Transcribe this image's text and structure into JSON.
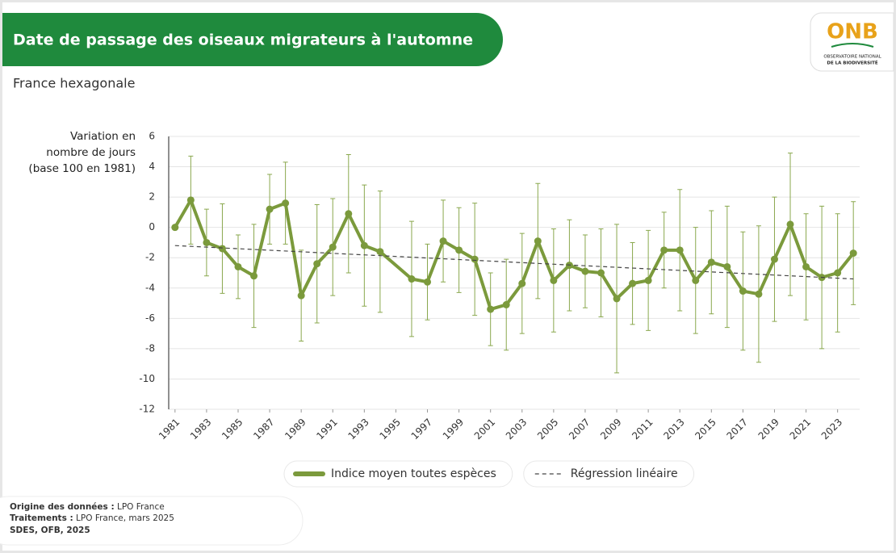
{
  "header": {
    "title": "Date de passage des oiseaux migrateurs à l'automne",
    "subtitle": "France hexagonale",
    "logo": {
      "name": "ONB",
      "line1": "OBSERVATOIRE NATIONAL",
      "line2": "DE LA BIODIVERSITÉ"
    }
  },
  "chart_data": {
    "type": "line",
    "ylabel": [
      "Variation en",
      "nombre de jours",
      "(base 100 en 1981)"
    ],
    "x": [
      1981,
      1982,
      1983,
      1984,
      1985,
      1986,
      1987,
      1988,
      1989,
      1990,
      1991,
      1992,
      1993,
      1994,
      1996,
      1997,
      1998,
      1999,
      2000,
      2001,
      2002,
      2003,
      2004,
      2005,
      2006,
      2007,
      2008,
      2009,
      2010,
      2011,
      2012,
      2013,
      2014,
      2015,
      2016,
      2017,
      2018,
      2019,
      2020,
      2021,
      2022,
      2023,
      2024
    ],
    "series": [
      {
        "name": "Indice moyen toutes espèces",
        "color": "#7b9a3c",
        "values": [
          0,
          1.8,
          -1.0,
          -1.4,
          -2.6,
          -3.2,
          1.2,
          1.6,
          -4.5,
          -2.4,
          -1.3,
          0.9,
          -1.2,
          -1.6,
          -3.4,
          -3.6,
          -0.9,
          -1.5,
          -2.1,
          -5.4,
          -5.1,
          -3.7,
          -0.9,
          -3.5,
          -2.5,
          -2.9,
          -3.0,
          -4.7,
          -3.7,
          -3.5,
          -1.5,
          -1.5,
          -3.5,
          -2.3,
          -2.6,
          -4.2,
          -4.4,
          -2.1,
          0.2,
          -2.6,
          -3.3,
          -3.0,
          -1.7
        ],
        "error": [
          0,
          2.9,
          2.2,
          2.95,
          2.1,
          3.4,
          2.3,
          2.7,
          3.0,
          3.9,
          3.2,
          3.9,
          4.0,
          4.0,
          3.8,
          2.5,
          2.7,
          2.8,
          3.7,
          2.4,
          3.0,
          3.3,
          3.8,
          3.4,
          3.0,
          2.4,
          2.9,
          4.9,
          2.7,
          3.3,
          2.5,
          4.0,
          3.5,
          3.4,
          4.0,
          3.9,
          4.5,
          4.1,
          4.7,
          3.5,
          4.7,
          3.9,
          3.4
        ]
      },
      {
        "name": "Régression linéaire",
        "color": "#444444",
        "dashed": true,
        "x": [
          1981,
          2024
        ],
        "values": [
          -1.2,
          -3.4
        ]
      }
    ],
    "xlim": [
      1980.6,
      2024.4
    ],
    "xticks": [
      1981,
      1983,
      1985,
      1987,
      1989,
      1991,
      1993,
      1995,
      1997,
      1999,
      2001,
      2003,
      2005,
      2007,
      2009,
      2011,
      2013,
      2015,
      2017,
      2019,
      2021,
      2023
    ],
    "ylim": [
      -12,
      6
    ],
    "yticks": [
      -12,
      -10,
      -8,
      -6,
      -4,
      -2,
      0,
      2,
      4,
      6
    ],
    "grid": true,
    "legend": "bottom"
  },
  "footer": {
    "origin_label": "Origine des données :",
    "origin": "LPO France",
    "processing_label": "Traitements :",
    "processing": "LPO France, mars 2025",
    "source": "SDES, OFB, 2025"
  }
}
